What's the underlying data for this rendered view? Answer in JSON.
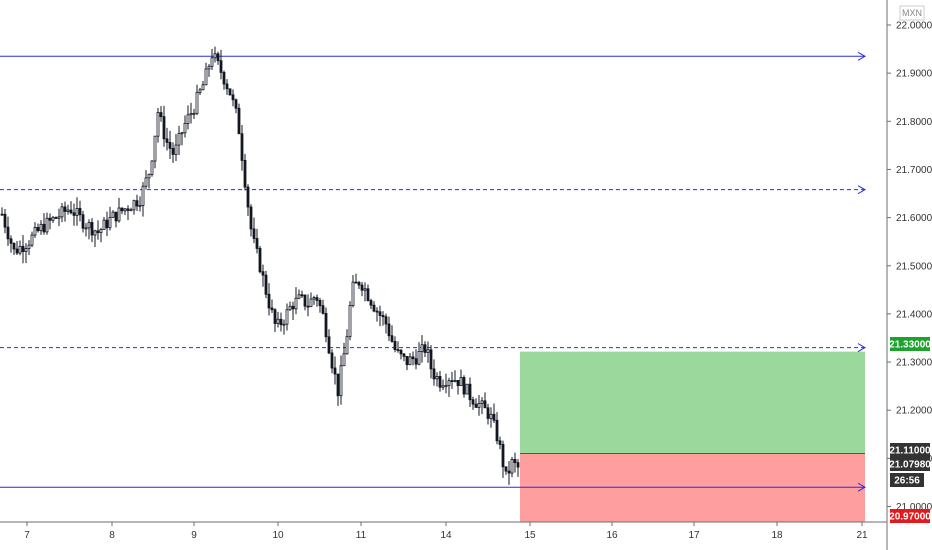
{
  "chart_data": {
    "type": "candlestick",
    "currency": "MXN",
    "ylim": [
      20.97,
      22.0
    ],
    "y_ticks": [
      "22.00000",
      "21.90000",
      "21.80000",
      "21.70000",
      "21.60000",
      "21.50000",
      "21.40000",
      "21.30000",
      "21.20000",
      "21.10000",
      "21.00000"
    ],
    "x_ticks": [
      "7",
      "8",
      "9",
      "10",
      "11",
      "14",
      "15",
      "16",
      "17",
      "18",
      "21"
    ],
    "horizontal_lines": [
      {
        "price": 21.935,
        "style": "solid"
      },
      {
        "price": 21.658,
        "style": "dashed"
      },
      {
        "price": 21.33,
        "style": "dashed"
      },
      {
        "price": 21.04,
        "style": "solid"
      }
    ],
    "position": {
      "type": "long",
      "entry": 21.11,
      "target": 21.33,
      "stop": 20.97
    },
    "price_badges": [
      {
        "label": "21.33000",
        "color": "#1fa12e"
      },
      {
        "label": "21.11000",
        "color": "#333333"
      },
      {
        "label": "21.07980",
        "color": "#333333"
      },
      {
        "label": "26:56",
        "color": "#333333"
      },
      {
        "label": "20.97000",
        "color": "#e3191e"
      }
    ],
    "colors": {
      "candle": "#131722",
      "trend_line": "#2a2fd6",
      "profit_zone": "#9bd89b",
      "loss_zone": "#ff9e9e",
      "axis_line": "#6e6e6e"
    },
    "series_close_path": [
      [
        0,
        21.62
      ],
      [
        14,
        21.53
      ],
      [
        28,
        21.55
      ],
      [
        42,
        21.58
      ],
      [
        56,
        21.6
      ],
      [
        70,
        21.62
      ],
      [
        84,
        21.59
      ],
      [
        98,
        21.57
      ],
      [
        112,
        21.6
      ],
      [
        126,
        21.62
      ],
      [
        140,
        21.64
      ],
      [
        150,
        21.7
      ],
      [
        158,
        21.82
      ],
      [
        166,
        21.76
      ],
      [
        174,
        21.73
      ],
      [
        184,
        21.79
      ],
      [
        194,
        21.83
      ],
      [
        204,
        21.88
      ],
      [
        212,
        21.94
      ],
      [
        222,
        21.9
      ],
      [
        230,
        21.86
      ],
      [
        238,
        21.8
      ],
      [
        246,
        21.66
      ],
      [
        252,
        21.56
      ],
      [
        260,
        21.5
      ],
      [
        268,
        21.43
      ],
      [
        276,
        21.37
      ],
      [
        284,
        21.39
      ],
      [
        292,
        21.42
      ],
      [
        300,
        21.43
      ],
      [
        308,
        21.42
      ],
      [
        316,
        21.44
      ],
      [
        324,
        21.39
      ],
      [
        332,
        21.3
      ],
      [
        338,
        21.24
      ],
      [
        346,
        21.34
      ],
      [
        352,
        21.45
      ],
      [
        360,
        21.47
      ],
      [
        368,
        21.44
      ],
      [
        376,
        21.41
      ],
      [
        386,
        21.38
      ],
      [
        396,
        21.32
      ],
      [
        406,
        21.3
      ],
      [
        416,
        21.31
      ],
      [
        426,
        21.33
      ],
      [
        432,
        21.28
      ],
      [
        440,
        21.26
      ],
      [
        450,
        21.27
      ],
      [
        460,
        21.26
      ],
      [
        470,
        21.23
      ],
      [
        480,
        21.21
      ],
      [
        490,
        21.19
      ],
      [
        498,
        21.14
      ],
      [
        506,
        21.06
      ],
      [
        512,
        21.09
      ],
      [
        518,
        21.08
      ]
    ]
  }
}
